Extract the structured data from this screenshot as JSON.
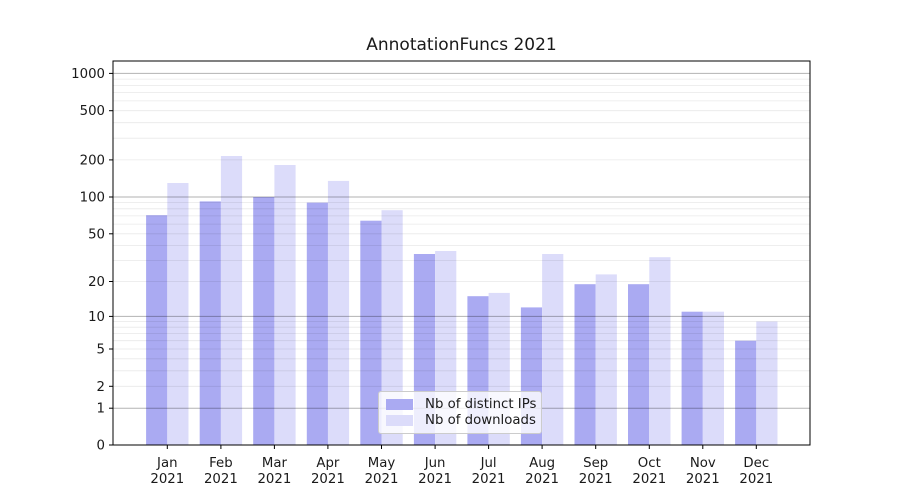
{
  "chart_data": {
    "type": "bar",
    "title": "AnnotationFuncs 2021",
    "categories": [
      "Jan 2021",
      "Feb 2021",
      "Mar 2021",
      "Apr 2021",
      "May 2021",
      "Jun 2021",
      "Jul 2021",
      "Aug 2021",
      "Sep 2021",
      "Oct 2021",
      "Nov 2021",
      "Dec 2021"
    ],
    "series": [
      {
        "name": "Nb of distinct IPs",
        "color": "#aaaaf2",
        "values": [
          71,
          92,
          100,
          90,
          64,
          34,
          15,
          12,
          19,
          19,
          11,
          6
        ]
      },
      {
        "name": "Nb of downloads",
        "color": "#dcdcfa",
        "values": [
          130,
          215,
          182,
          135,
          78,
          36,
          16,
          34,
          23,
          32,
          11,
          9
        ]
      }
    ],
    "xlabel": "",
    "ylabel": "",
    "yscale": "log1p",
    "ylim": [
      0,
      1250
    ],
    "yticks": [
      0,
      1,
      2,
      5,
      10,
      20,
      50,
      100,
      200,
      500,
      1000
    ],
    "major_grid_values": [
      1,
      10,
      100,
      1000
    ],
    "grid": "on",
    "legend_position": "lower center",
    "colors": {
      "axis": "#000000",
      "text": "#1a1a1a",
      "grid_major": "rgba(0,0,0,0.30)",
      "grid_minor": "rgba(0,0,0,0.09)"
    }
  }
}
